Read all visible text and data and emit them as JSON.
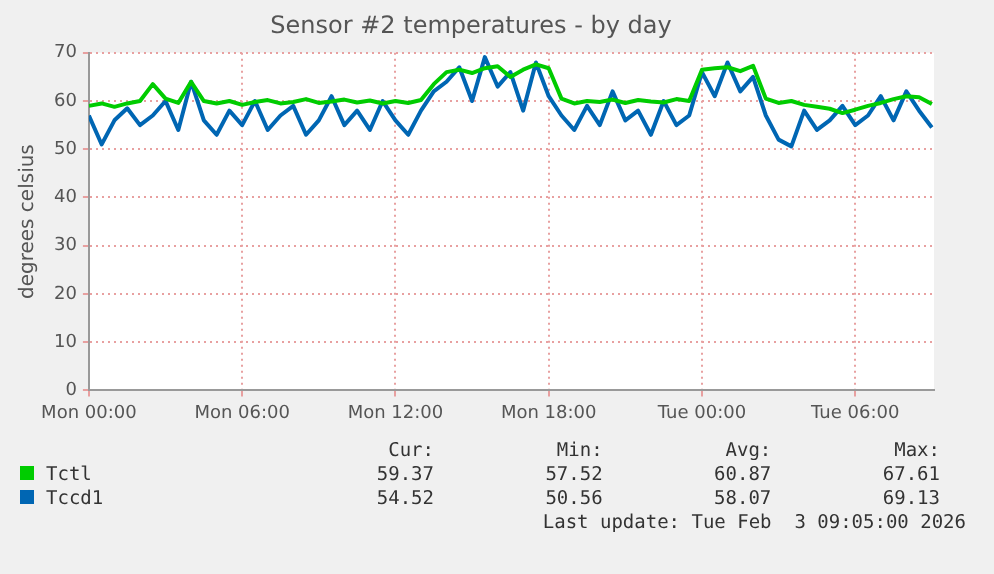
{
  "chart_data": {
    "type": "line",
    "title": "Sensor #2 temperatures - by day",
    "ylabel": "degrees celsius",
    "x": [
      "2026-02-02T00:00",
      "2026-02-02T00:30",
      "2026-02-02T01:00",
      "2026-02-02T01:30",
      "2026-02-02T02:00",
      "2026-02-02T02:30",
      "2026-02-02T03:00",
      "2026-02-02T03:30",
      "2026-02-02T04:00",
      "2026-02-02T04:30",
      "2026-02-02T05:00",
      "2026-02-02T05:30",
      "2026-02-02T06:00",
      "2026-02-02T06:30",
      "2026-02-02T07:00",
      "2026-02-02T07:30",
      "2026-02-02T08:00",
      "2026-02-02T08:30",
      "2026-02-02T09:00",
      "2026-02-02T09:30",
      "2026-02-02T10:00",
      "2026-02-02T10:30",
      "2026-02-02T11:00",
      "2026-02-02T11:30",
      "2026-02-02T12:00",
      "2026-02-02T12:30",
      "2026-02-02T13:00",
      "2026-02-02T13:30",
      "2026-02-02T14:00",
      "2026-02-02T14:30",
      "2026-02-02T15:00",
      "2026-02-02T15:30",
      "2026-02-02T16:00",
      "2026-02-02T16:30",
      "2026-02-02T17:00",
      "2026-02-02T17:30",
      "2026-02-02T18:00",
      "2026-02-02T18:30",
      "2026-02-02T19:00",
      "2026-02-02T19:30",
      "2026-02-02T20:00",
      "2026-02-02T20:30",
      "2026-02-02T21:00",
      "2026-02-02T21:30",
      "2026-02-02T22:00",
      "2026-02-02T22:30",
      "2026-02-02T23:00",
      "2026-02-02T23:30",
      "2026-02-03T00:00",
      "2026-02-03T00:30",
      "2026-02-03T01:00",
      "2026-02-03T01:30",
      "2026-02-03T02:00",
      "2026-02-03T02:30",
      "2026-02-03T03:00",
      "2026-02-03T03:30",
      "2026-02-03T04:00",
      "2026-02-03T04:30",
      "2026-02-03T05:00",
      "2026-02-03T05:30",
      "2026-02-03T06:00",
      "2026-02-03T06:30",
      "2026-02-03T07:00",
      "2026-02-03T07:30",
      "2026-02-03T08:00",
      "2026-02-03T08:30",
      "2026-02-03T09:00"
    ],
    "series": [
      {
        "name": "Tctl",
        "color": "#00cc00",
        "values": [
          59,
          59.5,
          58.8,
          59.5,
          60,
          63.5,
          60.5,
          59.6,
          64,
          60,
          59.5,
          60,
          59.2,
          59.8,
          60.2,
          59.5,
          59.8,
          60.4,
          59.6,
          59.9,
          60.3,
          59.7,
          60.1,
          59.5,
          60,
          59.6,
          60.2,
          63.5,
          66,
          66.5,
          65.8,
          66.8,
          67.2,
          65,
          66.5,
          67.6,
          66.8,
          60.5,
          59.5,
          60,
          59.8,
          60.3,
          59.6,
          60.2,
          59.9,
          59.7,
          60.4,
          60,
          66.5,
          66.8,
          67,
          66.2,
          67.3,
          60.5,
          59.6,
          60,
          59.2,
          58.8,
          58.4,
          57.5,
          58.2,
          59,
          59.6,
          60.4,
          61,
          60.8,
          59.4
        ]
      },
      {
        "name": "Tccd1",
        "color": "#0066b3",
        "values": [
          57,
          51,
          56,
          58.5,
          55,
          57,
          60,
          54,
          64,
          56,
          53,
          58,
          55,
          60,
          54,
          57,
          59,
          53,
          56,
          61,
          55,
          58,
          54,
          60,
          56,
          53,
          58,
          62,
          64,
          67,
          60,
          69.1,
          63,
          66,
          58,
          68,
          61,
          57,
          54,
          59,
          55,
          62,
          56,
          58,
          53,
          60,
          55,
          57,
          66,
          61,
          68,
          62,
          65,
          57,
          52,
          50.6,
          58,
          54,
          56,
          59,
          55,
          57,
          61,
          56,
          62,
          58,
          54.5
        ]
      }
    ],
    "xlim": [
      "2026-02-02T00:00",
      "2026-02-03T09:05"
    ],
    "xticks": [
      {
        "value": "2026-02-02T00:00",
        "label": "Mon 00:00"
      },
      {
        "value": "2026-02-02T06:00",
        "label": "Mon 06:00"
      },
      {
        "value": "2026-02-02T12:00",
        "label": "Mon 12:00"
      },
      {
        "value": "2026-02-02T18:00",
        "label": "Mon 18:00"
      },
      {
        "value": "2026-02-03T00:00",
        "label": "Tue 00:00"
      },
      {
        "value": "2026-02-03T06:00",
        "label": "Tue 06:00"
      }
    ],
    "ylim": [
      0,
      70
    ],
    "yticks": [
      0,
      10,
      20,
      30,
      40,
      50,
      60,
      70
    ],
    "grid": true,
    "legend": "bottom",
    "marker": "none",
    "line_style": "solid",
    "annotations": [
      "Cur:",
      "Min:",
      "Avg:",
      "Max:",
      "59.37",
      "57.52",
      "60.87",
      "67.61",
      "54.52",
      "50.56",
      "58.07",
      "69.13",
      "Last update: Tue Feb  3 09:05:00 2026"
    ]
  }
}
